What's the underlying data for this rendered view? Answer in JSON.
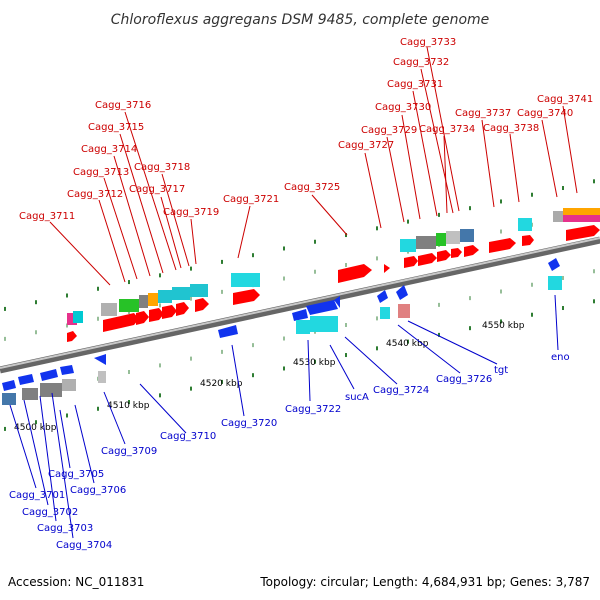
{
  "title": "Chloroflexus aggregans DSM 9485, complete genome",
  "footer": {
    "accession": "Accession: NC_011831",
    "summary": "Topology: circular; Length: 4,684,931 bp; Genes: 3,787"
  },
  "scale": [
    "4500 kbp",
    "4510 kbp",
    "4520 kbp",
    "4530 kbp",
    "4540 kbp",
    "4550 kbp"
  ],
  "colors": {
    "forward_label": "#cc0000",
    "reverse_label": "#0000cc",
    "forward_gene": "#ff0000",
    "reverse_gene": "#1133ee",
    "backbone": "#909090",
    "tick": "#2e7d32"
  },
  "labels_forward": [
    "Cagg_3711",
    "Cagg_3712",
    "Cagg_3713",
    "Cagg_3714",
    "Cagg_3715",
    "Cagg_3716",
    "Cagg_3717",
    "Cagg_3718",
    "Cagg_3719",
    "Cagg_3721",
    "Cagg_3725",
    "Cagg_3727",
    "Cagg_3729",
    "Cagg_3730",
    "Cagg_3731",
    "Cagg_3732",
    "Cagg_3733",
    "Cagg_3734",
    "Cagg_3737",
    "Cagg_3738",
    "Cagg_3740",
    "Cagg_3741"
  ],
  "labels_reverse": [
    "Cagg_3701",
    "Cagg_3702",
    "Cagg_3703",
    "Cagg_3704",
    "Cagg_3705",
    "Cagg_3706",
    "Cagg_3709",
    "Cagg_3710",
    "Cagg_3720",
    "Cagg_3722",
    "sucA",
    "Cagg_3724",
    "Cagg_3726",
    "tgt",
    "eno"
  ]
}
